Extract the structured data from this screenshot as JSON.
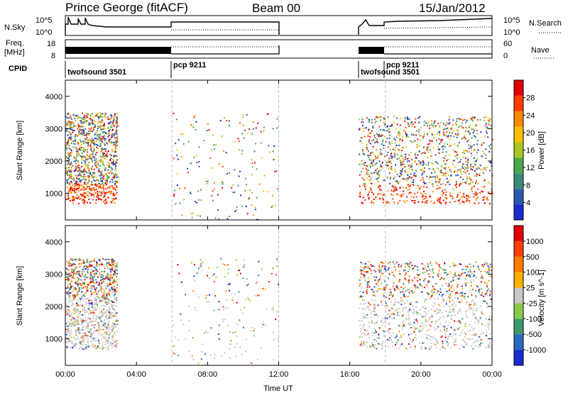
{
  "header": {
    "station": "Prince George (fitACF)",
    "beam": "Beam 00",
    "date": "15/Jan/2012"
  },
  "summary_panels": {
    "nsky_label": "N.Sky",
    "nsky_ticks": [
      "10^5",
      "10^0"
    ],
    "nsearch_label": "N.Search",
    "nsearch_ticks": [
      "10^5",
      "10^0"
    ],
    "freq_label": "Freq.",
    "freq_unit": "[MHz]",
    "freq_ticks": [
      "18",
      "8"
    ],
    "nave_label": "Nave",
    "nave_ticks": [
      "60",
      "0"
    ],
    "cpid_label": "CPID",
    "cpid_segments": [
      "twofsound 3501",
      "pcp 9211",
      "twofsound 3501",
      "pcp 9211"
    ]
  },
  "x_axis": {
    "label": "Time UT",
    "ticks": [
      "00:00",
      "04:00",
      "08:00",
      "12:00",
      "16:00",
      "20:00",
      "00:00"
    ]
  },
  "chart_data": [
    {
      "type": "heatmap",
      "name": "power",
      "ylabel": "Slant Range [km]",
      "yticks": [
        1000,
        2000,
        3000,
        4000
      ],
      "ylim": [
        180,
        4500
      ],
      "xlim_hours": [
        0,
        24
      ],
      "colorbar_label": "Power [dB]",
      "colorbar_ticks": [
        "28",
        "24",
        "20",
        "16",
        "12",
        "8",
        "4"
      ],
      "colors": [
        "#1a2bd0",
        "#2a5ab0",
        "#3a8a7a",
        "#4aa84a",
        "#a8c820",
        "#ffc000",
        "#ff8a00",
        "#ff3c00",
        "#e00000"
      ],
      "regions": [
        {
          "t": [
            0.0,
            2.9
          ],
          "r": [
            700,
            3500
          ],
          "level": "mixed"
        },
        {
          "t": [
            6.0,
            12.0
          ],
          "r": [
            200,
            3500
          ],
          "level": "sparse"
        },
        {
          "t": [
            16.5,
            24.0
          ],
          "r": [
            700,
            3400
          ],
          "level": "mixed"
        }
      ]
    },
    {
      "type": "heatmap",
      "name": "velocity",
      "ylabel": "Slant Range [km]",
      "yticks": [
        1000,
        2000,
        3000,
        4000
      ],
      "ylim": [
        180,
        4500
      ],
      "xlim_hours": [
        0,
        24
      ],
      "colorbar_label": "Velocity [m s^-1]",
      "colorbar_ticks": [
        "1000",
        "500",
        "100",
        "25",
        "-25",
        "-100",
        "-500",
        "-1000"
      ],
      "colors": [
        "#1a2bd0",
        "#2a6ac0",
        "#3a9a6a",
        "#8ac84a",
        "#c8c8c8",
        "#ffb000",
        "#ff7a00",
        "#ff3c00",
        "#e00000"
      ],
      "regions": [
        {
          "t": [
            0.0,
            2.9
          ],
          "r": [
            700,
            3500
          ],
          "level": "mixed"
        },
        {
          "t": [
            6.0,
            12.0
          ],
          "r": [
            200,
            3500
          ],
          "level": "sparse"
        },
        {
          "t": [
            16.5,
            24.0
          ],
          "r": [
            700,
            3400
          ],
          "level": "mixed"
        }
      ]
    }
  ]
}
